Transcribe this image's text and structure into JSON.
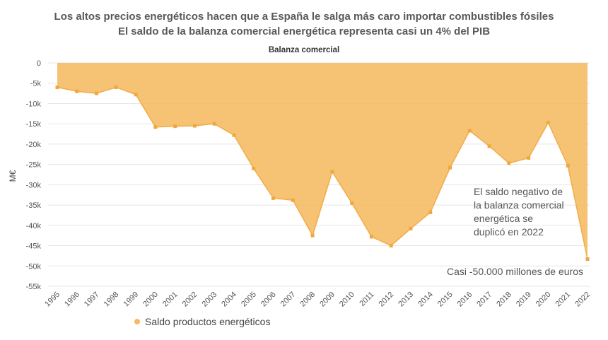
{
  "titles": {
    "line1": "Los altos precios energéticos hacen que a España le salga más caro importar combustibles fósiles",
    "line2": "El saldo de la balanza comercial energética representa casi un 4% del PIB",
    "subtitle": "Balanza comercial"
  },
  "annotations": {
    "note1": "El saldo negativo de la balanza comercial energética se duplicó en 2022",
    "note2": "Casi -50.000 millones de euros"
  },
  "colors": {
    "area": "#f5b961",
    "line": "#f2ac48",
    "grid": "#e6e6e6"
  },
  "chart_data": {
    "type": "area",
    "title": "Balanza comercial",
    "xlabel": "",
    "ylabel": "M€",
    "ylim": [
      -55000,
      0
    ],
    "yticks": [
      0,
      -5000,
      -10000,
      -15000,
      -20000,
      -25000,
      -30000,
      -35000,
      -40000,
      -45000,
      -50000,
      -55000
    ],
    "ytick_labels": [
      "0",
      "-5k",
      "-10k",
      "-15k",
      "-20k",
      "-25k",
      "-30k",
      "-35k",
      "-40k",
      "-45k",
      "-50k",
      "-55k"
    ],
    "categories": [
      "1995",
      "1996",
      "1997",
      "1998",
      "1999",
      "2000",
      "2001",
      "2002",
      "2003",
      "2004",
      "2005",
      "2006",
      "2007",
      "2008",
      "2009",
      "2010",
      "2011",
      "2012",
      "2013",
      "2014",
      "2015",
      "2016",
      "2017",
      "2018",
      "2019",
      "2020",
      "2021",
      "2022"
    ],
    "series": [
      {
        "name": "Saldo productos energéticos",
        "values": [
          -6000,
          -7000,
          -7500,
          -6000,
          -7800,
          -15800,
          -15600,
          -15500,
          -15000,
          -17800,
          -26000,
          -33300,
          -33800,
          -42500,
          -26800,
          -34500,
          -42800,
          -45000,
          -40800,
          -36800,
          -25800,
          -16700,
          -20500,
          -24700,
          -23400,
          -14700,
          -25300,
          -48300
        ]
      }
    ],
    "grid": true,
    "legend": "bottom-left"
  }
}
